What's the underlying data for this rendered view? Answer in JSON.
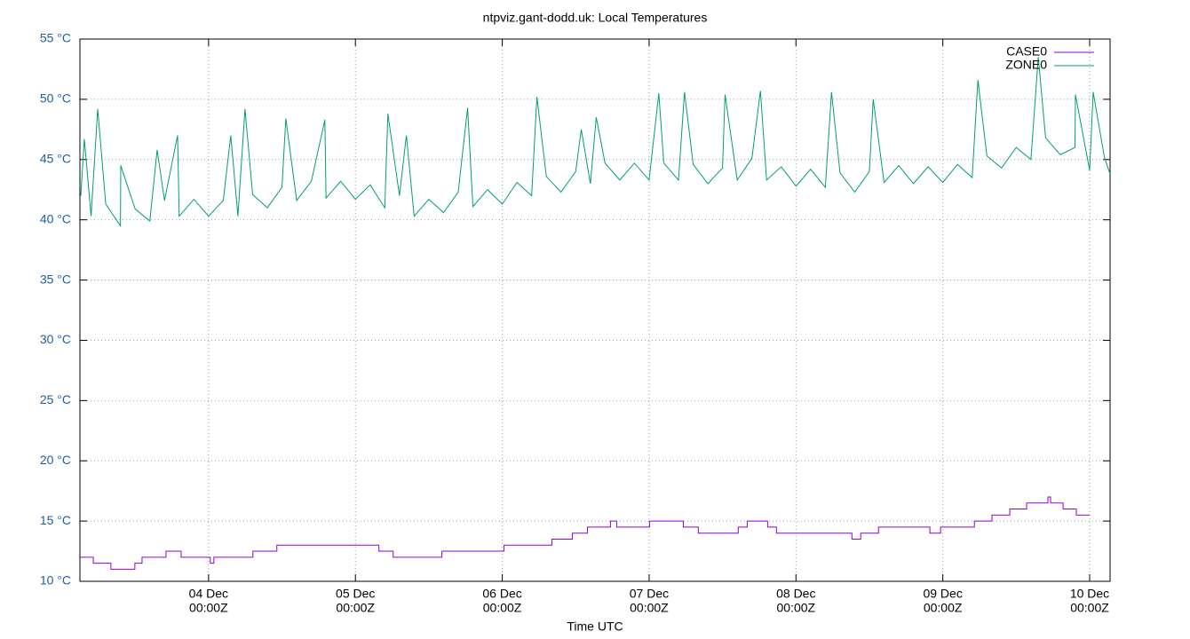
{
  "chart_data": {
    "type": "line",
    "title": "ntpviz.gant-dodd.uk: Local Temperatures",
    "x_label": "Time UTC",
    "xlim": [
      3.124,
      10.139
    ],
    "ylim": [
      10,
      55
    ],
    "xticks": [
      {
        "value": 4,
        "label": [
          "04 Dec",
          "00:00Z"
        ]
      },
      {
        "value": 5,
        "label": [
          "05 Dec",
          "00:00Z"
        ]
      },
      {
        "value": 6,
        "label": [
          "06 Dec",
          "00:00Z"
        ]
      },
      {
        "value": 7,
        "label": [
          "07 Dec",
          "00:00Z"
        ]
      },
      {
        "value": 8,
        "label": [
          "08 Dec",
          "00:00Z"
        ]
      },
      {
        "value": 9,
        "label": [
          "09 Dec",
          "00:00Z"
        ]
      },
      {
        "value": 10,
        "label": [
          "10 Dec",
          "00:00Z"
        ]
      }
    ],
    "yticks": [
      {
        "value": 10,
        "label": "10 °C"
      },
      {
        "value": 15,
        "label": "15 °C"
      },
      {
        "value": 20,
        "label": "20 °C"
      },
      {
        "value": 25,
        "label": "25 °C"
      },
      {
        "value": 30,
        "label": "30 °C"
      },
      {
        "value": 35,
        "label": "35 °C"
      },
      {
        "value": 40,
        "label": "40 °C"
      },
      {
        "value": 45,
        "label": "45 °C"
      },
      {
        "value": 50,
        "label": "50 °C"
      },
      {
        "value": 55,
        "label": "55 °C"
      }
    ],
    "grid": true,
    "legend": "top-right",
    "series": [
      {
        "name": "CASE0",
        "color": "#9400d3",
        "step": true,
        "x": [
          3.124,
          3.215,
          3.335,
          3.498,
          3.547,
          3.71,
          3.813,
          4.012,
          4.036,
          4.302,
          4.465,
          5.16,
          5.257,
          5.589,
          6.012,
          6.338,
          6.477,
          6.58,
          6.737,
          6.779,
          7.003,
          7.233,
          7.335,
          7.607,
          7.668,
          7.807,
          7.867,
          8.381,
          8.441,
          8.562,
          8.912,
          8.985,
          9.215,
          9.335,
          9.456,
          9.571,
          9.716,
          9.734,
          9.819,
          9.909,
          10.0
        ],
        "values": [
          12,
          11.5,
          11,
          11.5,
          12,
          12.5,
          12,
          11.5,
          12,
          12.5,
          13,
          12.5,
          12,
          12.5,
          13,
          13.5,
          14,
          14.5,
          15,
          14.5,
          15,
          14.5,
          14,
          14.5,
          15,
          14.5,
          14,
          13.5,
          14,
          14.5,
          14,
          14.5,
          15,
          15.5,
          16,
          16.5,
          17,
          16.5,
          16,
          15.5,
          15.5
        ]
      },
      {
        "name": "ZONE0",
        "color": "#009e73",
        "x": [
          3.13,
          3.154,
          3.2,
          3.245,
          3.3,
          3.4,
          3.402,
          3.5,
          3.6,
          3.65,
          3.7,
          3.789,
          3.8,
          3.9,
          4.0,
          4.1,
          4.151,
          4.2,
          4.248,
          4.3,
          4.4,
          4.5,
          4.526,
          4.6,
          4.7,
          4.792,
          4.8,
          4.9,
          5.0,
          5.1,
          5.2,
          5.221,
          5.3,
          5.347,
          5.4,
          5.5,
          5.6,
          5.7,
          5.764,
          5.8,
          5.9,
          6.0,
          6.1,
          6.2,
          6.236,
          6.3,
          6.4,
          6.5,
          6.538,
          6.6,
          6.64,
          6.7,
          6.8,
          6.9,
          7.0,
          7.066,
          7.1,
          7.2,
          7.241,
          7.3,
          7.4,
          7.5,
          7.517,
          7.6,
          7.7,
          7.758,
          7.8,
          7.9,
          8.0,
          8.1,
          8.2,
          8.242,
          8.3,
          8.4,
          8.5,
          8.526,
          8.6,
          8.7,
          8.8,
          8.9,
          9.0,
          9.1,
          9.2,
          9.239,
          9.3,
          9.4,
          9.5,
          9.6,
          9.65,
          9.7,
          9.8,
          9.9,
          9.903,
          10.0,
          10.024,
          10.1,
          10.139
        ],
        "values": [
          42.0,
          46.7,
          40.3,
          49.2,
          41.3,
          39.5,
          44.5,
          40.9,
          39.9,
          45.8,
          41.6,
          47.0,
          40.3,
          41.7,
          40.3,
          41.6,
          47.0,
          40.3,
          49.2,
          42.1,
          41.0,
          42.7,
          48.4,
          41.6,
          43.2,
          48.3,
          41.8,
          43.2,
          41.7,
          42.9,
          41.0,
          48.8,
          42.0,
          47.0,
          40.3,
          41.7,
          40.6,
          42.3,
          49.3,
          41.1,
          42.5,
          41.3,
          43.1,
          42.0,
          50.2,
          43.6,
          42.3,
          44.0,
          47.5,
          43.0,
          48.5,
          44.7,
          43.3,
          44.7,
          43.3,
          50.5,
          44.7,
          43.3,
          50.6,
          44.6,
          43.0,
          44.3,
          50.4,
          43.3,
          45.1,
          50.7,
          43.3,
          44.4,
          42.8,
          44.2,
          42.7,
          50.6,
          43.9,
          42.3,
          44.0,
          50.0,
          43.1,
          44.5,
          43.0,
          44.4,
          43.1,
          44.6,
          43.5,
          51.6,
          45.3,
          44.3,
          46.0,
          45.0,
          53.5,
          46.8,
          45.4,
          46.0,
          50.4,
          44.1,
          50.6,
          45.2,
          43.8
        ]
      }
    ]
  }
}
